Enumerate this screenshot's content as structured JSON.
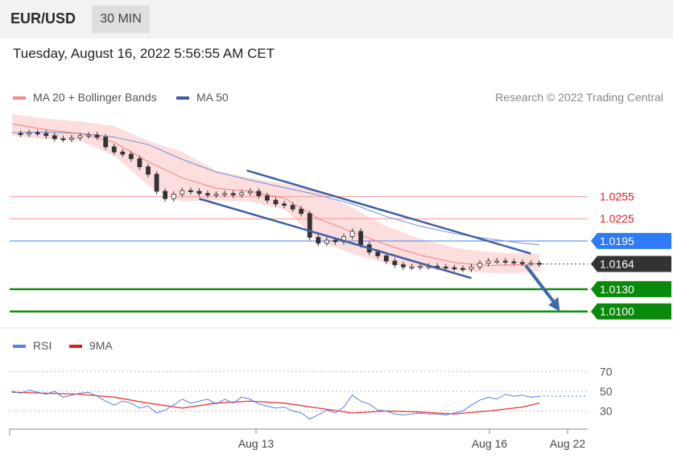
{
  "header": {
    "symbol": "EUR/USD",
    "timeframe": "30 MIN",
    "datetime": "Tuesday, August 16, 2022 5:56:55 AM CET"
  },
  "legend": [
    {
      "label": "MA 20 + Bollinger Bands",
      "color": "#f28b8b"
    },
    {
      "label": "MA 50",
      "color": "#3d5fa3"
    }
  ],
  "copyright": "Research © 2022 Trading Central",
  "rsi_legend": [
    {
      "label": "RSI",
      "color": "#5b7fe0"
    },
    {
      "label": "9MA",
      "color": "#e02020"
    }
  ],
  "colors": {
    "resistance": "#f7a6a6",
    "resistance_text": "#e02020",
    "current_level": "#5b8ef0",
    "support": "#0a8a0a",
    "price_tag": "#333333",
    "arrow": "#3d6aa8",
    "channel": "#3d5fa3"
  },
  "chart_data": [
    {
      "type": "line",
      "name": "price-chart",
      "title": "",
      "ylim": [
        1.0092,
        1.0365
      ],
      "x_ticks": [
        "Aug 13",
        "Aug 16",
        "Aug 22"
      ],
      "levels": [
        {
          "value": 1.0255,
          "label": "1.0255",
          "kind": "resistance"
        },
        {
          "value": 1.0225,
          "label": "1.0225",
          "kind": "resistance"
        },
        {
          "value": 1.0195,
          "label": "1.0195",
          "kind": "pivot"
        },
        {
          "value": 1.0164,
          "label": "1.0164",
          "kind": "last-price"
        },
        {
          "value": 1.013,
          "label": "1.0130",
          "kind": "support"
        },
        {
          "value": 1.01,
          "label": "1.0100",
          "kind": "support"
        }
      ],
      "series": [
        {
          "name": "Price",
          "x": [
            0,
            5,
            10,
            15,
            20,
            25,
            30,
            35,
            40,
            45,
            50,
            55,
            60,
            65,
            70,
            75,
            80,
            85,
            90,
            95,
            100,
            105,
            110,
            115,
            120,
            125,
            130,
            135,
            140,
            145,
            150,
            155,
            160,
            165,
            170,
            175,
            180,
            185,
            190,
            195,
            200,
            205,
            210,
            215,
            220,
            225,
            230,
            235,
            240,
            245,
            250,
            255,
            260,
            265,
            270,
            275,
            280,
            285,
            290,
            295,
            300,
            305,
            310
          ],
          "values": [
            1.034,
            1.0339,
            1.0341,
            1.034,
            1.0337,
            1.0333,
            1.0332,
            1.0334,
            1.0337,
            1.0338,
            1.0335,
            1.0322,
            1.0315,
            1.0312,
            1.0306,
            1.0295,
            1.0285,
            1.0262,
            1.0252,
            1.0258,
            1.0263,
            1.0262,
            1.0259,
            1.0257,
            1.0258,
            1.0259,
            1.0257,
            1.026,
            1.0262,
            1.0256,
            1.025,
            1.0245,
            1.0243,
            1.0238,
            1.0232,
            1.02,
            1.0192,
            1.0196,
            1.0194,
            1.0201,
            1.0208,
            1.019,
            1.018,
            1.0175,
            1.0168,
            1.0163,
            1.016,
            1.016,
            1.0161,
            1.0161,
            1.016,
            1.0159,
            1.0158,
            1.0157,
            1.016,
            1.0165,
            1.0168,
            1.0168,
            1.0167,
            1.0166,
            1.0165,
            1.0165,
            1.0164
          ]
        },
        {
          "name": "MA 20",
          "x": [
            0,
            20,
            40,
            60,
            80,
            100,
            120,
            140,
            160,
            180,
            200,
            220,
            240,
            260,
            280,
            300,
            310
          ],
          "values": [
            1.0353,
            1.0345,
            1.034,
            1.0328,
            1.0302,
            1.028,
            1.0266,
            1.0262,
            1.0253,
            1.0225,
            1.0207,
            1.019,
            1.0176,
            1.0166,
            1.0162,
            1.0163,
            1.0165
          ]
        },
        {
          "name": "BB Upper",
          "x": [
            0,
            20,
            40,
            60,
            80,
            100,
            120,
            140,
            160,
            180,
            200,
            220,
            240,
            260,
            280,
            300,
            310
          ],
          "values": [
            1.0366,
            1.036,
            1.0356,
            1.035,
            1.033,
            1.0315,
            1.029,
            1.028,
            1.0272,
            1.0262,
            1.024,
            1.0215,
            1.0198,
            1.0186,
            1.018,
            1.0178,
            1.0178
          ]
        },
        {
          "name": "BB Lower",
          "x": [
            0,
            20,
            40,
            60,
            80,
            100,
            120,
            140,
            160,
            180,
            200,
            220,
            240,
            260,
            280,
            300,
            310
          ],
          "values": [
            1.0337,
            1.0332,
            1.033,
            1.031,
            1.027,
            1.0248,
            1.025,
            1.0248,
            1.0238,
            1.0195,
            1.0178,
            1.0165,
            1.0158,
            1.0155,
            1.0152,
            1.0152,
            1.0155
          ]
        },
        {
          "name": "MA 50",
          "x": [
            0,
            20,
            40,
            60,
            80,
            100,
            120,
            140,
            160,
            180,
            200,
            220,
            240,
            260,
            280,
            300,
            310
          ],
          "values": [
            1.0341,
            1.0342,
            1.034,
            1.0335,
            1.0325,
            1.0305,
            1.0288,
            1.0277,
            1.0267,
            1.0257,
            1.0245,
            1.0228,
            1.0215,
            1.0205,
            1.0198,
            1.0192,
            1.019
          ]
        }
      ],
      "channel": {
        "upper": [
          [
            138,
            1.029
          ],
          [
            305,
            1.0178
          ]
        ],
        "lower": [
          [
            110,
            1.0252
          ],
          [
            270,
            1.0145
          ]
        ]
      },
      "forecast_arrow": [
        [
          302,
          1.0162
        ],
        [
          322,
          1.01
        ]
      ]
    },
    {
      "type": "line",
      "name": "rsi-chart",
      "title": "",
      "ylim": [
        15,
        80
      ],
      "y_ticks": [
        70,
        50,
        30
      ],
      "series": [
        {
          "name": "RSI",
          "x": [
            0,
            5,
            10,
            15,
            20,
            25,
            30,
            35,
            40,
            45,
            50,
            55,
            60,
            65,
            70,
            75,
            80,
            85,
            90,
            95,
            100,
            105,
            110,
            115,
            120,
            125,
            130,
            135,
            140,
            145,
            150,
            155,
            160,
            165,
            170,
            175,
            180,
            185,
            190,
            195,
            200,
            205,
            210,
            215,
            220,
            225,
            230,
            235,
            240,
            245,
            250,
            255,
            260,
            265,
            270,
            275,
            280,
            285,
            290,
            295,
            300,
            305,
            310
          ],
          "values": [
            50,
            48,
            51,
            49,
            47,
            50,
            44,
            46,
            48,
            49,
            45,
            40,
            36,
            40,
            38,
            33,
            35,
            28,
            31,
            36,
            42,
            38,
            40,
            42,
            37,
            42,
            38,
            44,
            42,
            37,
            35,
            33,
            34,
            30,
            28,
            22,
            26,
            31,
            28,
            34,
            46,
            40,
            37,
            31,
            30,
            27,
            26,
            27,
            28,
            27,
            27,
            26,
            28,
            30,
            36,
            41,
            44,
            42,
            47,
            45,
            46,
            44,
            45
          ]
        },
        {
          "name": "9MA",
          "x": [
            0,
            20,
            40,
            60,
            80,
            100,
            120,
            140,
            160,
            180,
            200,
            220,
            240,
            260,
            280,
            300,
            310
          ],
          "values": [
            49,
            48,
            47,
            44,
            38,
            33,
            38,
            40,
            38,
            33,
            28,
            30,
            29,
            27,
            30,
            34,
            38
          ]
        }
      ]
    }
  ]
}
